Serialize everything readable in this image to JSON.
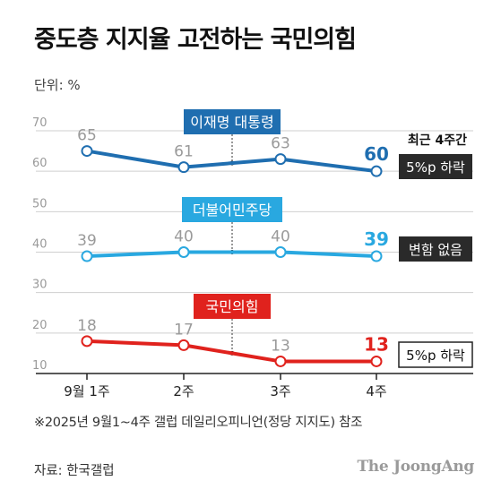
{
  "title": "중도층 지지율 고전하는 국민의힘",
  "unit_label": "단위: %",
  "note": "※2025년 9월1~4주 갤럽 데일리오피니언(정당 지지도) 참조",
  "source": "자료: 한국갤럽",
  "brand": "The JoongAng",
  "chart_data": {
    "type": "line",
    "categories": [
      "9월 1주",
      "2주",
      "3주",
      "4주"
    ],
    "ylim": [
      10,
      70
    ],
    "yticks": [
      10,
      20,
      30,
      40,
      50,
      60,
      70
    ],
    "grid": true,
    "recent_label": "최근 4주간",
    "series": [
      {
        "name": "이재명 대통령",
        "values": [
          65,
          61,
          63,
          60
        ],
        "color": "#1f6eb0",
        "change": "5%p 하락",
        "change_style": "dark"
      },
      {
        "name": "더불어민주당",
        "values": [
          39,
          40,
          40,
          39
        ],
        "color": "#29a8e0",
        "change": "변함 없음",
        "change_style": "dark"
      },
      {
        "name": "국민의힘",
        "values": [
          18,
          17,
          13,
          13
        ],
        "color": "#e0221d",
        "change": "5%p 하락",
        "change_style": "outline"
      }
    ]
  }
}
